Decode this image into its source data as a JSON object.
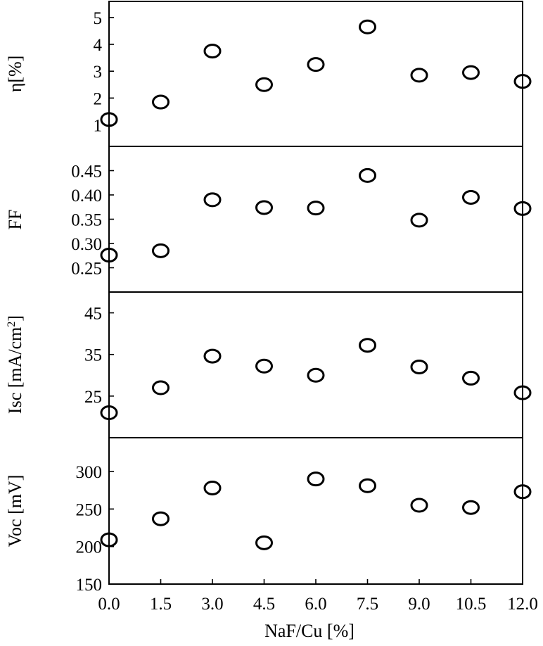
{
  "chart_data": {
    "type": "scatter",
    "xlabel": "NaF/Cu [%]",
    "x": [
      0.0,
      1.5,
      3.0,
      4.5,
      6.0,
      7.5,
      9.0,
      10.5,
      12.0
    ],
    "x_tick_labels": [
      "0.0",
      "1.5",
      "3.0",
      "4.5",
      "6.0",
      "7.5",
      "9.0",
      "10.5",
      "12.0"
    ],
    "xlim": [
      0,
      12
    ],
    "grid": false,
    "panels": [
      {
        "id": "eta",
        "ylabel": "η[%]",
        "ylim": [
          0.2,
          5.6
        ],
        "yticks": [
          1,
          2,
          3,
          4,
          5
        ],
        "ytick_labels": [
          "1",
          "2",
          "3",
          "4",
          "5"
        ],
        "values": [
          1.2,
          1.85,
          3.75,
          2.5,
          3.25,
          4.65,
          2.85,
          2.95,
          2.62
        ]
      },
      {
        "id": "ff",
        "ylabel": "FF",
        "ylim": [
          0.2,
          0.5
        ],
        "yticks": [
          0.25,
          0.3,
          0.35,
          0.4,
          0.45
        ],
        "ytick_labels": [
          "0.25",
          "0.30",
          "0.35",
          "0.40",
          "0.45"
        ],
        "values": [
          0.276,
          0.285,
          0.39,
          0.374,
          0.373,
          0.44,
          0.348,
          0.395,
          0.372
        ]
      },
      {
        "id": "isc",
        "ylabel_main": "Isc [mA/cm",
        "ylabel_sup": "2",
        "ylim": [
          15,
          50
        ],
        "yticks": [
          25,
          35,
          45
        ],
        "ytick_labels": [
          "25",
          "35",
          "45"
        ],
        "values": [
          21,
          27,
          34.6,
          32.2,
          30,
          37.2,
          32,
          29.3,
          25.8
        ]
      },
      {
        "id": "voc",
        "ylabel": "Voc [mV]",
        "ylim": [
          150,
          345
        ],
        "yticks": [
          150,
          200,
          250,
          300
        ],
        "ytick_labels": [
          "150",
          "200",
          "250",
          "300"
        ],
        "values": [
          209,
          237,
          278,
          205,
          290,
          281,
          255,
          252,
          273
        ]
      }
    ]
  }
}
